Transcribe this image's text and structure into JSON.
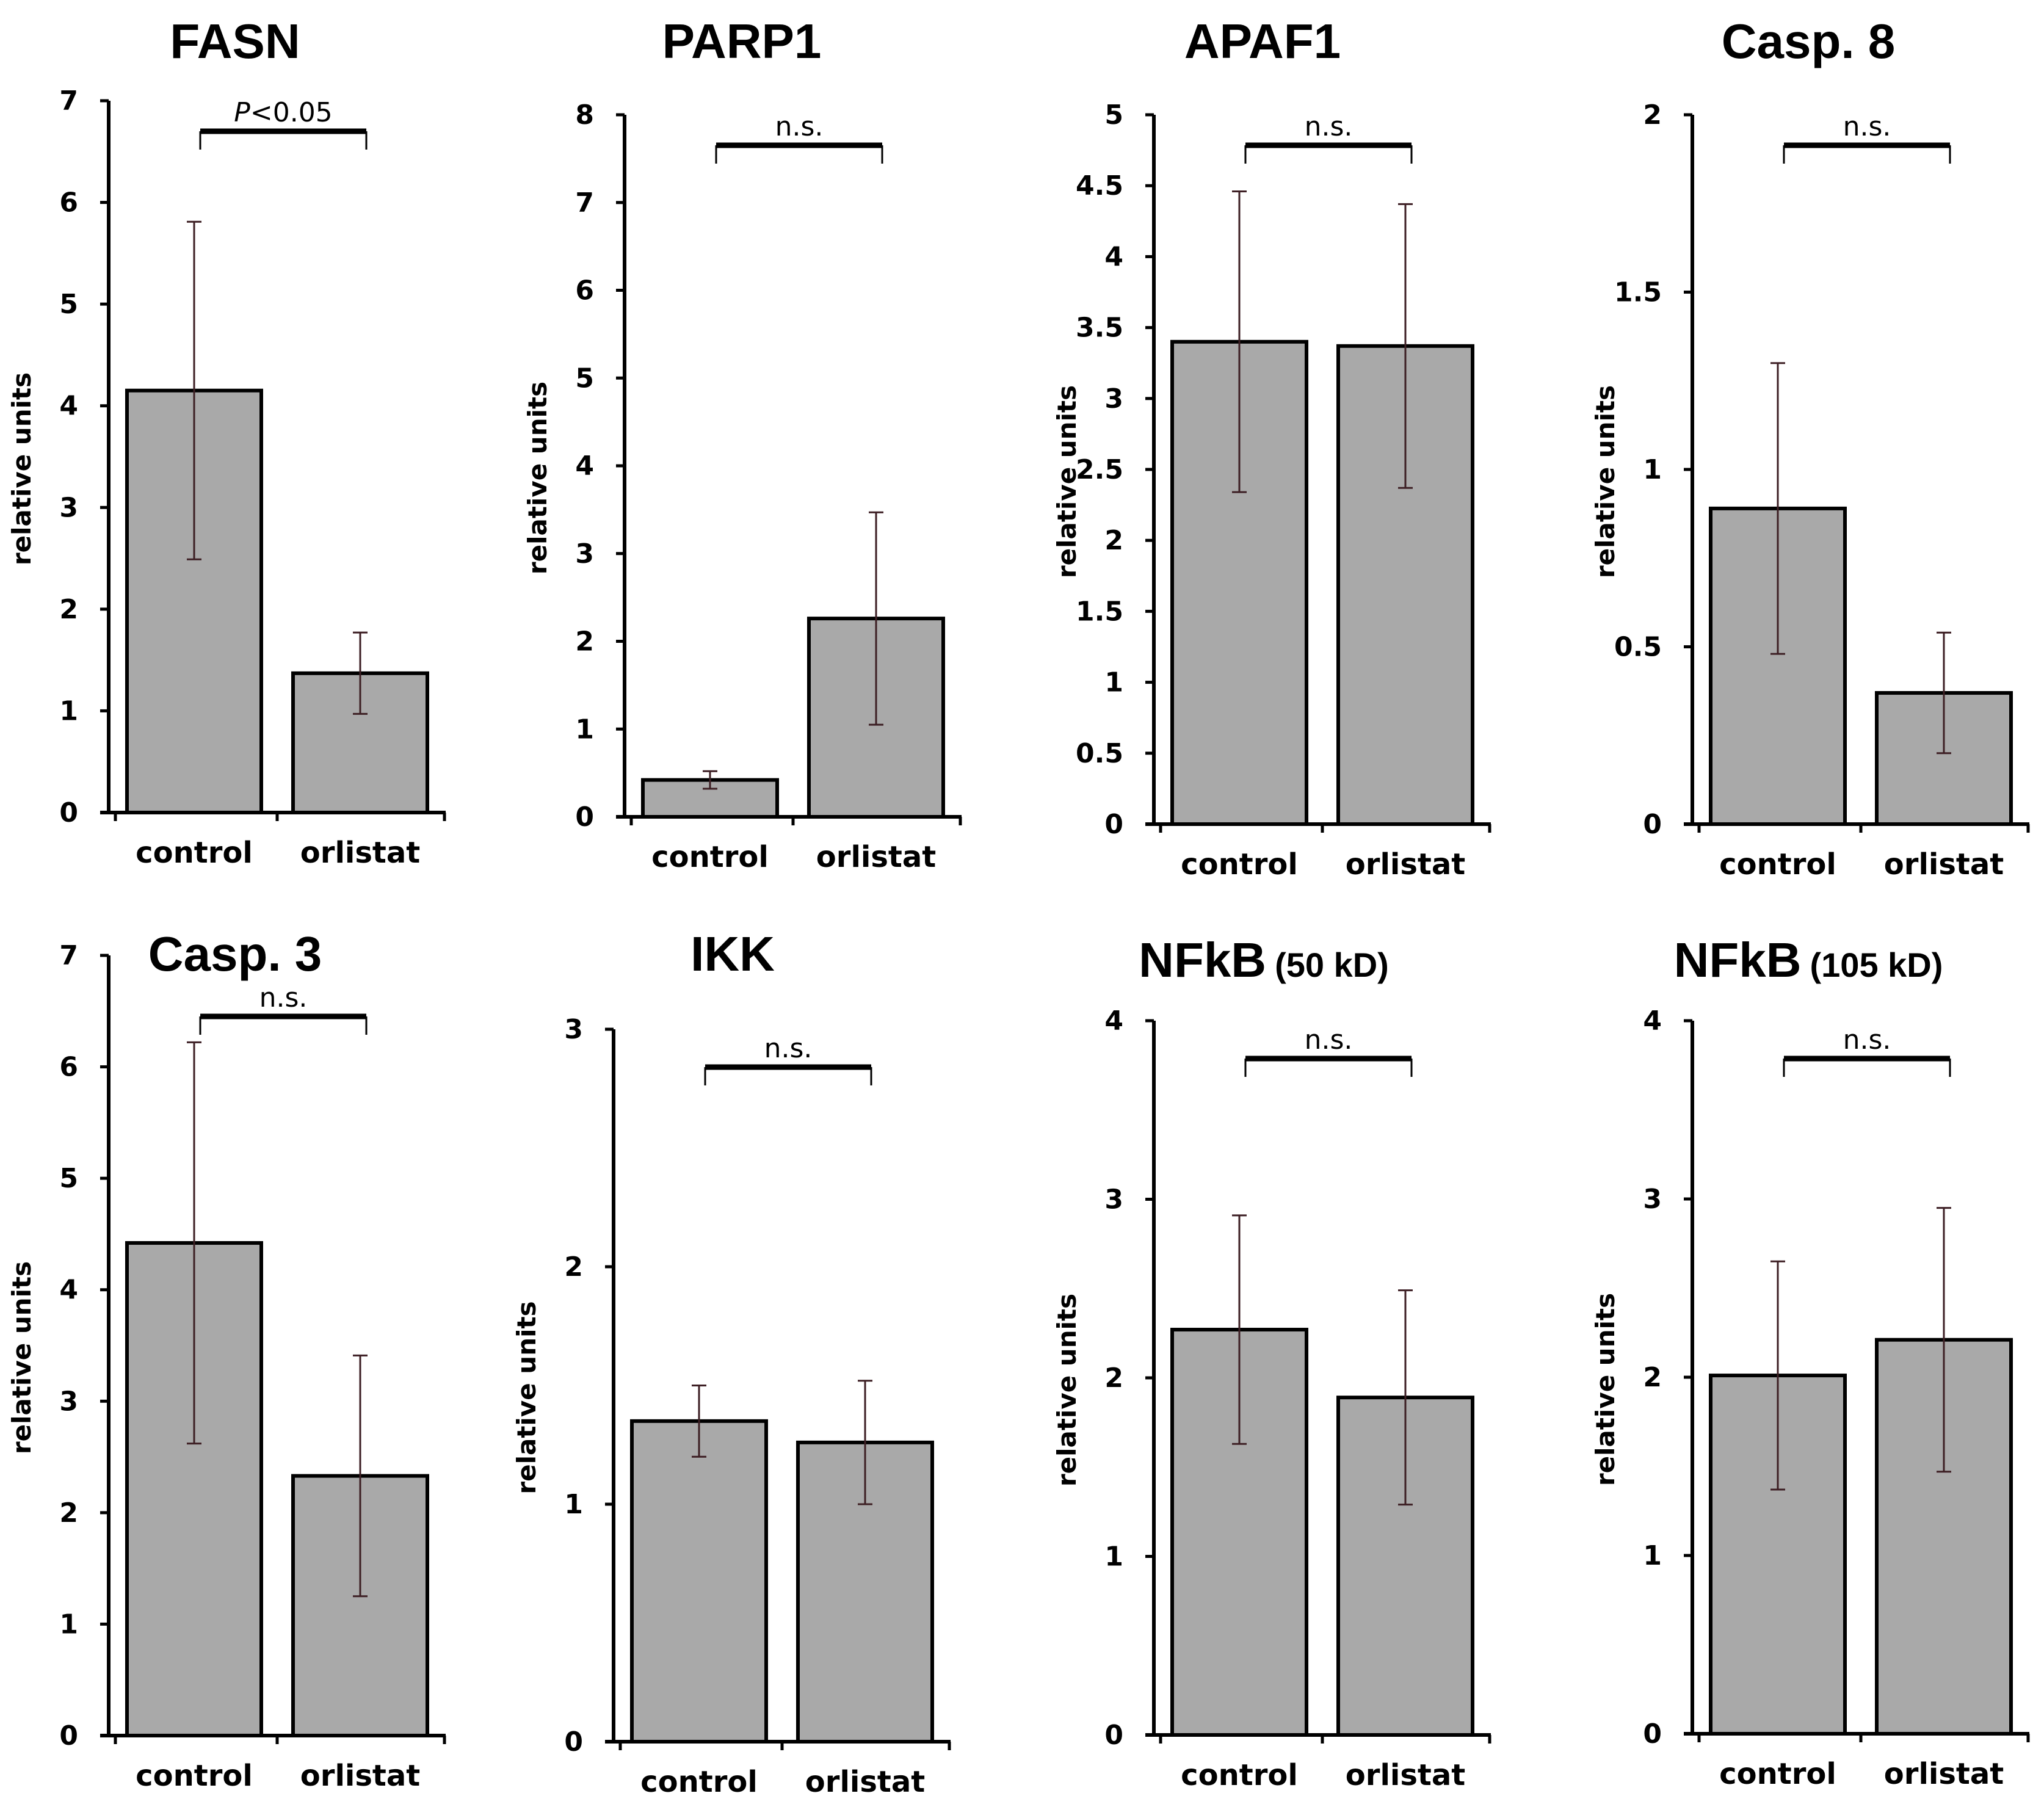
{
  "colors": {
    "bar_fill": "#a9a9a9",
    "bar_stroke": "#000000",
    "error_bar": "#3d1f24",
    "axis": "#000000",
    "background": "#ffffff"
  },
  "chart_data": [
    {
      "type": "bar",
      "title": "FASN",
      "title_suffix": "",
      "ylabel": "relative units",
      "categories": [
        "control",
        "orlistat"
      ],
      "values": [
        4.15,
        1.37
      ],
      "errors": [
        1.66,
        0.4
      ],
      "ylim": [
        0,
        7
      ],
      "yticks": [
        0,
        1,
        2,
        3,
        4,
        5,
        6,
        7
      ],
      "significance": "P<0.05"
    },
    {
      "type": "bar",
      "title": "PARP1",
      "title_suffix": "",
      "ylabel": "relative units",
      "categories": [
        "control",
        "orlistat"
      ],
      "values": [
        0.42,
        2.26
      ],
      "errors": [
        0.1,
        1.21
      ],
      "ylim": [
        0,
        8
      ],
      "yticks": [
        0,
        1,
        2,
        3,
        4,
        5,
        6,
        7,
        8
      ],
      "significance": "n.s."
    },
    {
      "type": "bar",
      "title": "APAF1",
      "title_suffix": "",
      "ylabel": "relative units",
      "categories": [
        "control",
        "orlistat"
      ],
      "values": [
        3.4,
        3.37
      ],
      "errors": [
        1.06,
        1.0
      ],
      "ylim": [
        0,
        5
      ],
      "yticks": [
        0,
        0.5,
        1,
        1.5,
        2,
        2.5,
        3,
        3.5,
        4,
        4.5,
        5
      ],
      "significance": "n.s."
    },
    {
      "type": "bar",
      "title": "Casp. 8",
      "title_suffix": "",
      "ylabel": "relative units",
      "categories": [
        "control",
        "orlistat"
      ],
      "values": [
        0.89,
        0.37
      ],
      "errors": [
        0.41,
        0.17
      ],
      "ylim": [
        0,
        2
      ],
      "yticks": [
        0,
        0.5,
        1,
        1.5,
        2
      ],
      "significance": "n.s."
    },
    {
      "type": "bar",
      "title": "Casp. 3",
      "title_suffix": "",
      "ylabel": "relative units",
      "categories": [
        "control",
        "orlistat"
      ],
      "values": [
        4.42,
        2.33
      ],
      "errors": [
        1.8,
        1.08
      ],
      "ylim": [
        0,
        7
      ],
      "yticks": [
        0,
        1,
        2,
        3,
        4,
        5,
        6,
        7
      ],
      "significance": "n.s."
    },
    {
      "type": "bar",
      "title": "IKK",
      "title_suffix": "",
      "ylabel": "relative units",
      "categories": [
        "control",
        "orlistat"
      ],
      "values": [
        1.35,
        1.26
      ],
      "errors": [
        0.15,
        0.26
      ],
      "ylim": [
        0,
        3
      ],
      "yticks": [
        0,
        1,
        2,
        3
      ],
      "significance": "n.s."
    },
    {
      "type": "bar",
      "title": "NFkB",
      "title_suffix": "(50 kD)",
      "ylabel": "relative units",
      "categories": [
        "control",
        "orlistat"
      ],
      "values": [
        2.27,
        1.89
      ],
      "errors": [
        0.64,
        0.6
      ],
      "ylim": [
        0,
        4
      ],
      "yticks": [
        0,
        1,
        2,
        3,
        4
      ],
      "significance": "n.s."
    },
    {
      "type": "bar",
      "title": "NFkB",
      "title_suffix": "(105 kD)",
      "ylabel": "relative units",
      "categories": [
        "control",
        "orlistat"
      ],
      "values": [
        2.01,
        2.21
      ],
      "errors": [
        0.64,
        0.74
      ],
      "ylim": [
        0,
        4
      ],
      "yticks": [
        0,
        1,
        2,
        3,
        4
      ],
      "significance": "n.s."
    }
  ]
}
